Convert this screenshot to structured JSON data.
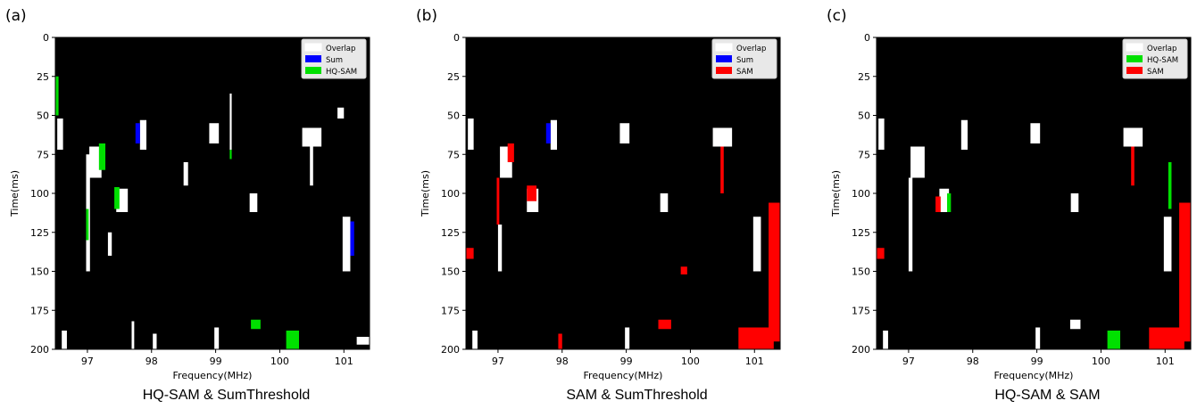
{
  "chart_data": [
    {
      "panel_label": "(a)",
      "type": "heatmap",
      "caption": "HQ-SAM & SumThreshold",
      "xlabel": "Frequency(MHz)",
      "ylabel": "Time(ms)",
      "xlim": [
        96.5,
        101.4
      ],
      "ylim": [
        0,
        200
      ],
      "xticks": [
        97,
        98,
        99,
        100,
        101
      ],
      "yticks": [
        0,
        25,
        50,
        75,
        100,
        125,
        150,
        175,
        200
      ],
      "legend": {
        "placement": "top-right",
        "entries": [
          {
            "name": "Overlap",
            "color": "#ffffff"
          },
          {
            "name": "Sum",
            "color": "#0000ff"
          },
          {
            "name": "HQ-SAM",
            "color": "#00e000"
          }
        ]
      },
      "background": "#000000",
      "regions": [
        {
          "cls": "Overlap",
          "freq": [
            96.53,
            96.62
          ],
          "time": [
            52,
            72
          ]
        },
        {
          "cls": "HQ-SAM",
          "freq": [
            96.5,
            96.55
          ],
          "time": [
            25,
            50
          ]
        },
        {
          "cls": "Overlap",
          "freq": [
            96.98,
            97.04
          ],
          "time": [
            75,
            150
          ]
        },
        {
          "cls": "HQ-SAM",
          "freq": [
            96.98,
            97.02
          ],
          "time": [
            110,
            130
          ]
        },
        {
          "cls": "Overlap",
          "freq": [
            97.03,
            97.22
          ],
          "time": [
            70,
            90
          ]
        },
        {
          "cls": "HQ-SAM",
          "freq": [
            97.18,
            97.28
          ],
          "time": [
            68,
            85
          ]
        },
        {
          "cls": "Overlap",
          "freq": [
            97.45,
            97.63
          ],
          "time": [
            97,
            112
          ]
        },
        {
          "cls": "HQ-SAM",
          "freq": [
            97.42,
            97.5
          ],
          "time": [
            96,
            110
          ]
        },
        {
          "cls": "Overlap",
          "freq": [
            97.32,
            97.38
          ],
          "time": [
            125,
            140
          ]
        },
        {
          "cls": "Overlap",
          "freq": [
            97.82,
            97.92
          ],
          "time": [
            53,
            72
          ]
        },
        {
          "cls": "Sum",
          "freq": [
            97.75,
            97.82
          ],
          "time": [
            55,
            68
          ]
        },
        {
          "cls": "Overlap",
          "freq": [
            98.5,
            98.57
          ],
          "time": [
            80,
            95
          ]
        },
        {
          "cls": "Overlap",
          "freq": [
            98.9,
            99.05
          ],
          "time": [
            55,
            68
          ]
        },
        {
          "cls": "Overlap",
          "freq": [
            99.22,
            99.25
          ],
          "time": [
            36,
            72
          ]
        },
        {
          "cls": "HQ-SAM",
          "freq": [
            99.22,
            99.25
          ],
          "time": [
            72,
            78
          ]
        },
        {
          "cls": "Overlap",
          "freq": [
            99.53,
            99.65
          ],
          "time": [
            100,
            112
          ]
        },
        {
          "cls": "Overlap",
          "freq": [
            100.35,
            100.65
          ],
          "time": [
            58,
            70
          ]
        },
        {
          "cls": "Overlap",
          "freq": [
            100.47,
            100.52
          ],
          "time": [
            70,
            95
          ]
        },
        {
          "cls": "Overlap",
          "freq": [
            100.98,
            101.1
          ],
          "time": [
            115,
            150
          ]
        },
        {
          "cls": "Sum",
          "freq": [
            101.1,
            101.16
          ],
          "time": [
            118,
            140
          ]
        },
        {
          "cls": "Overlap",
          "freq": [
            100.9,
            101.0
          ],
          "time": [
            45,
            52
          ]
        },
        {
          "cls": "HQ-SAM",
          "freq": [
            99.55,
            99.7
          ],
          "time": [
            181,
            187
          ]
        },
        {
          "cls": "HQ-SAM",
          "freq": [
            100.1,
            100.3
          ],
          "time": [
            188,
            200
          ]
        },
        {
          "cls": "Overlap",
          "freq": [
            96.6,
            96.68
          ],
          "time": [
            188,
            200
          ]
        },
        {
          "cls": "Overlap",
          "freq": [
            97.69,
            97.73
          ],
          "time": [
            182,
            200
          ]
        },
        {
          "cls": "Overlap",
          "freq": [
            98.02,
            98.08
          ],
          "time": [
            190,
            200
          ]
        },
        {
          "cls": "Overlap",
          "freq": [
            98.98,
            99.05
          ],
          "time": [
            186,
            200
          ]
        },
        {
          "cls": "Overlap",
          "freq": [
            101.2,
            101.4
          ],
          "time": [
            192,
            197
          ]
        }
      ]
    },
    {
      "panel_label": "(b)",
      "type": "heatmap",
      "caption": "SAM & SumThreshold",
      "xlabel": "Frequency(MHz)",
      "ylabel": "Time(ms)",
      "xlim": [
        96.5,
        101.4
      ],
      "ylim": [
        0,
        200
      ],
      "xticks": [
        97,
        98,
        99,
        100,
        101
      ],
      "yticks": [
        0,
        25,
        50,
        75,
        100,
        125,
        150,
        175,
        200
      ],
      "legend": {
        "placement": "top-right",
        "entries": [
          {
            "name": "Overlap",
            "color": "#ffffff"
          },
          {
            "name": "Sum",
            "color": "#0000ff"
          },
          {
            "name": "SAM",
            "color": "#ff0000"
          }
        ]
      },
      "background": "#000000",
      "regions": [
        {
          "cls": "Overlap",
          "freq": [
            96.53,
            96.62
          ],
          "time": [
            52,
            72
          ]
        },
        {
          "cls": "Overlap",
          "freq": [
            97.0,
            97.06
          ],
          "time": [
            120,
            150
          ]
        },
        {
          "cls": "SAM",
          "freq": [
            96.98,
            97.02
          ],
          "time": [
            90,
            120
          ]
        },
        {
          "cls": "Overlap",
          "freq": [
            97.03,
            97.22
          ],
          "time": [
            70,
            90
          ]
        },
        {
          "cls": "SAM",
          "freq": [
            97.15,
            97.25
          ],
          "time": [
            68,
            80
          ]
        },
        {
          "cls": "Overlap",
          "freq": [
            97.45,
            97.63
          ],
          "time": [
            97,
            112
          ]
        },
        {
          "cls": "SAM",
          "freq": [
            97.45,
            97.6
          ],
          "time": [
            95,
            105
          ]
        },
        {
          "cls": "SAM",
          "freq": [
            96.5,
            96.62
          ],
          "time": [
            135,
            142
          ]
        },
        {
          "cls": "Overlap",
          "freq": [
            97.82,
            97.92
          ],
          "time": [
            53,
            72
          ]
        },
        {
          "cls": "Sum",
          "freq": [
            97.75,
            97.82
          ],
          "time": [
            55,
            68
          ]
        },
        {
          "cls": "Overlap",
          "freq": [
            98.9,
            99.05
          ],
          "time": [
            55,
            68
          ]
        },
        {
          "cls": "Overlap",
          "freq": [
            99.53,
            99.65
          ],
          "time": [
            100,
            112
          ]
        },
        {
          "cls": "Overlap",
          "freq": [
            100.35,
            100.65
          ],
          "time": [
            58,
            70
          ]
        },
        {
          "cls": "SAM",
          "freq": [
            100.47,
            100.52
          ],
          "time": [
            70,
            100
          ]
        },
        {
          "cls": "Overlap",
          "freq": [
            100.98,
            101.1
          ],
          "time": [
            115,
            150
          ]
        },
        {
          "cls": "SAM",
          "freq": [
            101.22,
            101.4
          ],
          "time": [
            106,
            195
          ]
        },
        {
          "cls": "SAM",
          "freq": [
            100.75,
            101.3
          ],
          "time": [
            186,
            200
          ]
        },
        {
          "cls": "SAM",
          "freq": [
            99.5,
            99.7
          ],
          "time": [
            181,
            187
          ]
        },
        {
          "cls": "SAM",
          "freq": [
            99.85,
            99.95
          ],
          "time": [
            147,
            152
          ]
        },
        {
          "cls": "Overlap",
          "freq": [
            96.6,
            96.68
          ],
          "time": [
            188,
            200
          ]
        },
        {
          "cls": "Overlap",
          "freq": [
            98.98,
            99.05
          ],
          "time": [
            186,
            200
          ]
        },
        {
          "cls": "SAM",
          "freq": [
            97.94,
            98.0
          ],
          "time": [
            190,
            200
          ]
        }
      ]
    },
    {
      "panel_label": "(c)",
      "type": "heatmap",
      "caption": "HQ-SAM & SAM",
      "xlabel": "Frequency(MHz)",
      "ylabel": "Time(ms)",
      "xlim": [
        96.5,
        101.4
      ],
      "ylim": [
        0,
        200
      ],
      "xticks": [
        97,
        98,
        99,
        100,
        101
      ],
      "yticks": [
        0,
        25,
        50,
        75,
        100,
        125,
        150,
        175,
        200
      ],
      "legend": {
        "placement": "top-right",
        "entries": [
          {
            "name": "Overlap",
            "color": "#ffffff"
          },
          {
            "name": "HQ-SAM",
            "color": "#00e000"
          },
          {
            "name": "SAM",
            "color": "#ff0000"
          }
        ]
      },
      "background": "#000000",
      "regions": [
        {
          "cls": "Overlap",
          "freq": [
            96.53,
            96.62
          ],
          "time": [
            52,
            72
          ]
        },
        {
          "cls": "Overlap",
          "freq": [
            97.0,
            97.06
          ],
          "time": [
            90,
            150
          ]
        },
        {
          "cls": "Overlap",
          "freq": [
            97.03,
            97.25
          ],
          "time": [
            70,
            90
          ]
        },
        {
          "cls": "Overlap",
          "freq": [
            97.48,
            97.63
          ],
          "time": [
            97,
            112
          ]
        },
        {
          "cls": "SAM",
          "freq": [
            97.42,
            97.5
          ],
          "time": [
            102,
            112
          ]
        },
        {
          "cls": "HQ-SAM",
          "freq": [
            97.6,
            97.66
          ],
          "time": [
            100,
            112
          ]
        },
        {
          "cls": "SAM",
          "freq": [
            96.5,
            96.62
          ],
          "time": [
            135,
            142
          ]
        },
        {
          "cls": "Overlap",
          "freq": [
            97.82,
            97.92
          ],
          "time": [
            53,
            72
          ]
        },
        {
          "cls": "Overlap",
          "freq": [
            98.9,
            99.05
          ],
          "time": [
            55,
            68
          ]
        },
        {
          "cls": "Overlap",
          "freq": [
            99.53,
            99.65
          ],
          "time": [
            100,
            112
          ]
        },
        {
          "cls": "Overlap",
          "freq": [
            100.35,
            100.65
          ],
          "time": [
            58,
            70
          ]
        },
        {
          "cls": "SAM",
          "freq": [
            100.47,
            100.52
          ],
          "time": [
            70,
            95
          ]
        },
        {
          "cls": "Overlap",
          "freq": [
            100.98,
            101.1
          ],
          "time": [
            115,
            150
          ]
        },
        {
          "cls": "HQ-SAM",
          "freq": [
            101.05,
            101.1
          ],
          "time": [
            80,
            110
          ]
        },
        {
          "cls": "SAM",
          "freq": [
            101.22,
            101.4
          ],
          "time": [
            106,
            195
          ]
        },
        {
          "cls": "SAM",
          "freq": [
            100.75,
            101.3
          ],
          "time": [
            186,
            200
          ]
        },
        {
          "cls": "Overlap",
          "freq": [
            99.52,
            99.68
          ],
          "time": [
            181,
            187
          ]
        },
        {
          "cls": "HQ-SAM",
          "freq": [
            100.1,
            100.3
          ],
          "time": [
            188,
            200
          ]
        },
        {
          "cls": "Overlap",
          "freq": [
            96.6,
            96.68
          ],
          "time": [
            188,
            200
          ]
        },
        {
          "cls": "Overlap",
          "freq": [
            98.98,
            99.05
          ],
          "time": [
            186,
            200
          ]
        }
      ]
    }
  ]
}
